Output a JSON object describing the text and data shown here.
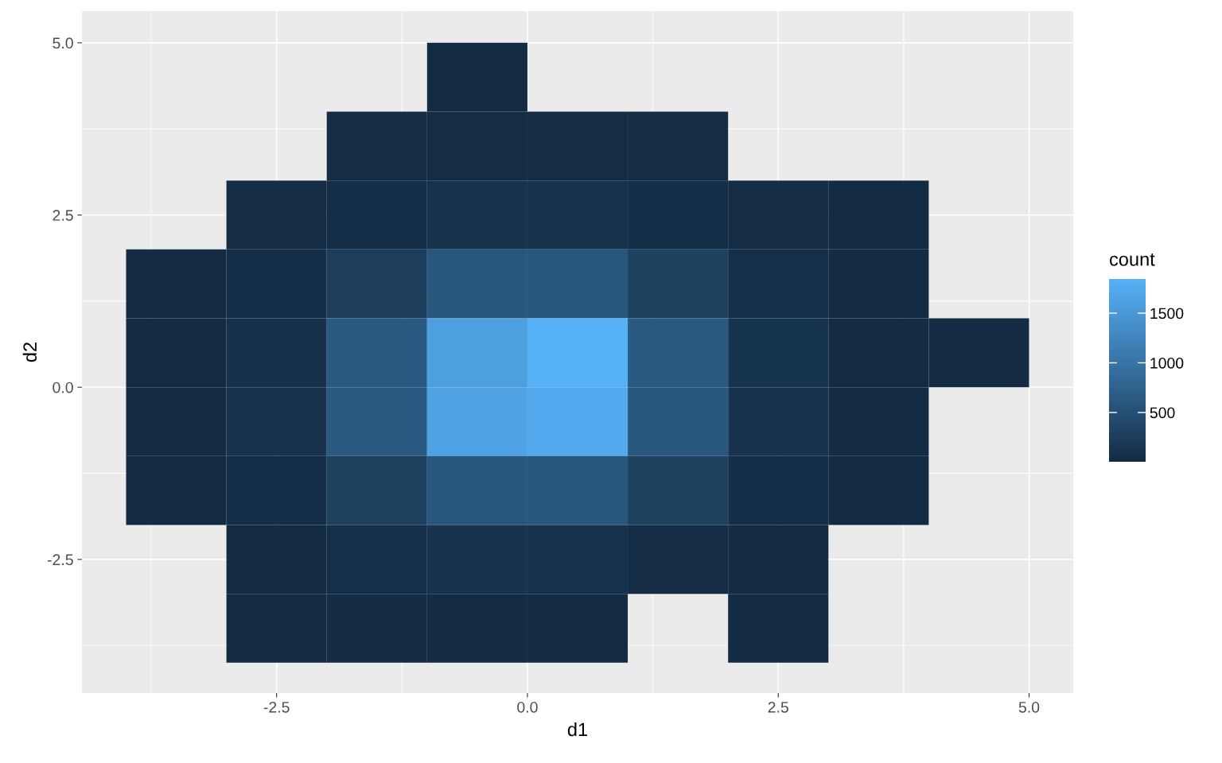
{
  "chart_data": {
    "type": "heatmap",
    "xlabel": "d1",
    "ylabel": "d2",
    "clabel": "count",
    "x": [
      -3.5,
      -2.5,
      -1.5,
      -0.5,
      0.5,
      1.5,
      2.5,
      3.5,
      4.5
    ],
    "y": [
      4.5,
      3.5,
      2.5,
      1.5,
      0.5,
      -0.5,
      -1.5,
      -2.5,
      -3.5
    ],
    "cells": [
      [
        null,
        null,
        null,
        5,
        null,
        null,
        null,
        null,
        null
      ],
      [
        null,
        null,
        20,
        25,
        25,
        20,
        null,
        null,
        null
      ],
      [
        null,
        20,
        50,
        100,
        100,
        50,
        20,
        10,
        null
      ],
      [
        5,
        40,
        250,
        600,
        600,
        300,
        60,
        10,
        null
      ],
      [
        10,
        90,
        650,
        1600,
        1844,
        650,
        130,
        15,
        3
      ],
      [
        10,
        100,
        650,
        1650,
        1750,
        620,
        120,
        15,
        null
      ],
      [
        5,
        50,
        300,
        600,
        600,
        300,
        50,
        5,
        null
      ],
      [
        null,
        15,
        60,
        120,
        110,
        30,
        10,
        null,
        null
      ],
      [
        null,
        5,
        5,
        5,
        5,
        null,
        5,
        null,
        null
      ]
    ],
    "colors": [
      "#132b43",
      "#56b1f7"
    ],
    "clim": [
      4,
      1844
    ],
    "cticks": [
      500,
      1000,
      1500
    ],
    "xlim": [
      -4.44,
      5.44
    ],
    "ylim": [
      -4.44,
      5.46
    ],
    "xticks": [
      {
        "value": -2.5,
        "label": "-2.5"
      },
      {
        "value": 0,
        "label": "0.0"
      },
      {
        "value": 2.5,
        "label": "2.5"
      },
      {
        "value": 5,
        "label": "5.0"
      }
    ],
    "yticks": [
      {
        "value": -2.5,
        "label": "-2.5"
      },
      {
        "value": 0,
        "label": "0.0"
      },
      {
        "value": 2.5,
        "label": "2.5"
      },
      {
        "value": 5,
        "label": "5.0"
      }
    ],
    "grid": true
  }
}
